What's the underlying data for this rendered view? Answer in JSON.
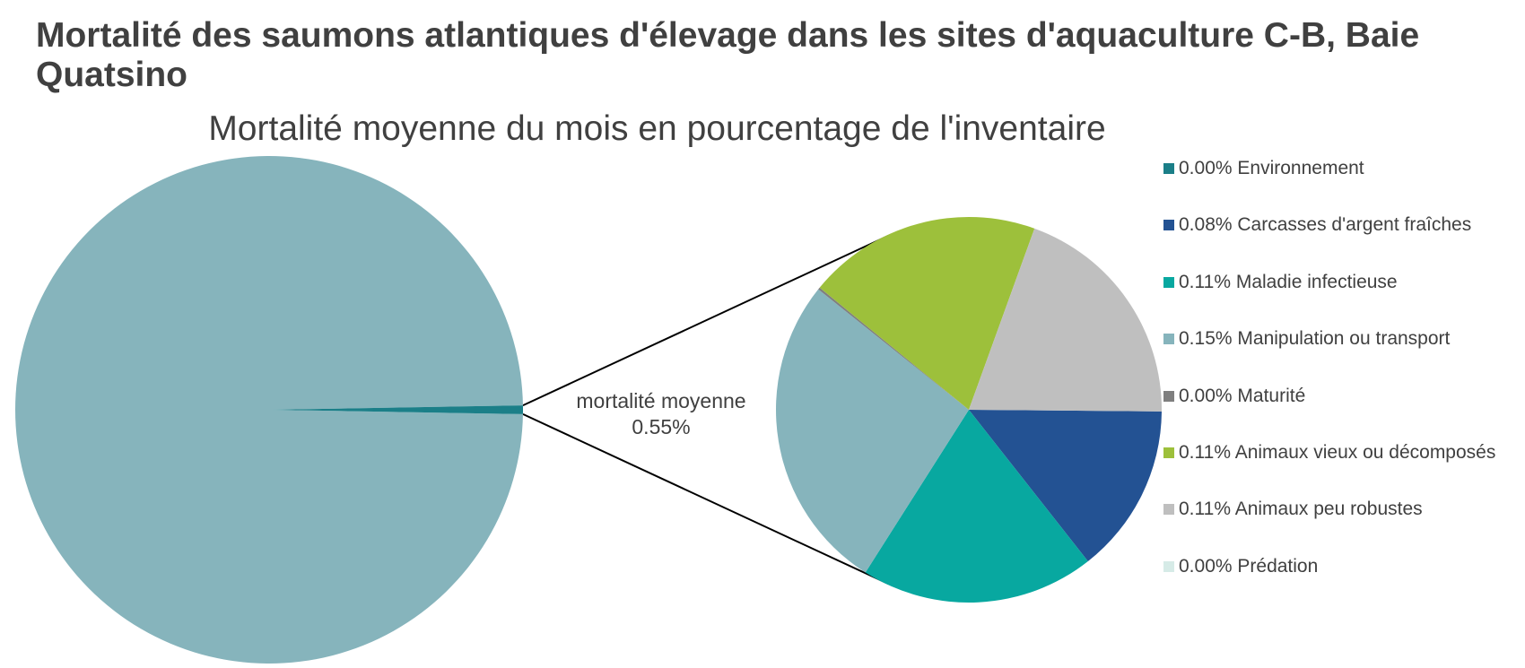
{
  "header": {
    "title": "Mortalité des saumons atlantiques d'élevage dans les sites d'aquaculture C-B, Baie Quatsino"
  },
  "chart_data": {
    "type": "pie",
    "subtype": "pie-of-pie",
    "title": "Mortalité moyenne du mois en pourcentage de l'inventaire",
    "main_pie": {
      "slices": [
        {
          "name": "",
          "value": 99.45,
          "color": "#86b4bc"
        },
        {
          "name": "mortalité moyenne",
          "value": 0.55,
          "color": "#1b7f88"
        }
      ],
      "aggregate_label": {
        "line1": "mortalité moyenne",
        "line2": "0.55%"
      }
    },
    "secondary_pie": {
      "slices": [
        {
          "name": "Environnement",
          "value": 0.0,
          "color": "#1b7f88"
        },
        {
          "name": "Carcasses d'argent fraîches",
          "value": 0.08,
          "color": "#235293"
        },
        {
          "name": "Maladie infectieuse",
          "value": 0.11,
          "color": "#08a8a0"
        },
        {
          "name": "Manipulation ou transport",
          "value": 0.15,
          "color": "#86b4bc"
        },
        {
          "name": "Maturité",
          "value": 0.001,
          "color": "#7f7f7f"
        },
        {
          "name": "Animaux vieux ou décomposés",
          "value": 0.11,
          "color": "#9dc03b"
        },
        {
          "name": "Animaux peu robustes",
          "value": 0.11,
          "color": "#bfbfbf"
        },
        {
          "name": "Prédation",
          "value": 0.0,
          "color": "#d6ebe7"
        }
      ]
    },
    "legend": {
      "position": "right",
      "items": [
        {
          "pct": "0.00%",
          "name": "Environnement",
          "color": "#1b7f88"
        },
        {
          "pct": "0.08%",
          "name": "Carcasses d'argent fraîches",
          "color": "#235293"
        },
        {
          "pct": "0.11%",
          "name": "Maladie infectieuse",
          "color": "#08a8a0"
        },
        {
          "pct": "0.15%",
          "name": "Manipulation ou transport",
          "color": "#86b4bc"
        },
        {
          "pct": "0.00%",
          "name": "Maturité",
          "color": "#7f7f7f"
        },
        {
          "pct": "0.11%",
          "name": "Animaux vieux ou décomposés",
          "color": "#9dc03b"
        },
        {
          "pct": "0.11%",
          "name": "Animaux peu robustes",
          "color": "#bfbfbf"
        },
        {
          "pct": "0.00%",
          "name": "Prédation",
          "color": "#d6ebe7"
        }
      ]
    }
  }
}
